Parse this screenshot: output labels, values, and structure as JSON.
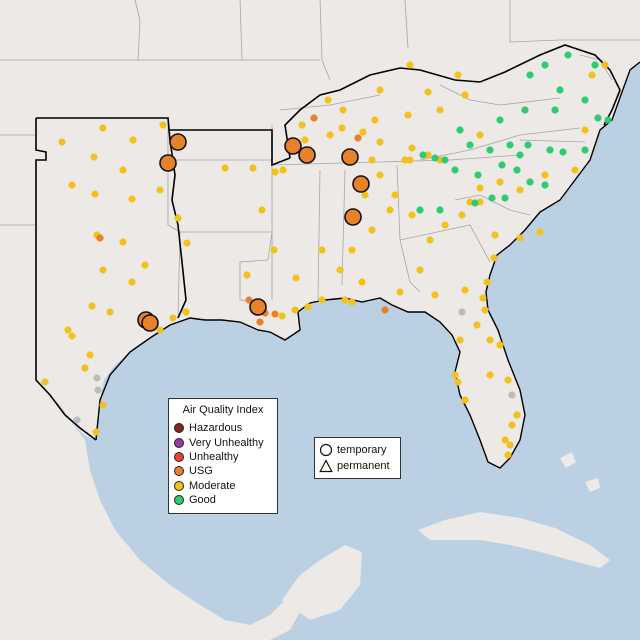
{
  "map": {
    "colors": {
      "water": "#bcd0e4",
      "land": "#ece9e6",
      "boundary": "#a7a6a4",
      "region": "#000000",
      "Hazardous": "#7e2a1f",
      "Very Unhealthy": "#8f3f97",
      "Unhealthy": "#e8452f",
      "USG": "#e8822a",
      "Moderate": "#f2c21b",
      "Good": "#2ecc71",
      "No Data": "#bbbbbb"
    },
    "legend": {
      "title": "Air Quality Index",
      "categories": [
        "Hazardous",
        "Very Unhealthy",
        "Unhealthy",
        "USG",
        "Moderate",
        "Good"
      ]
    },
    "shape_legend": {
      "temporary": "temporary",
      "permanent": "permanent"
    },
    "monitors": {
      "summary": {
        "USG-large": 11
      }
    }
  }
}
